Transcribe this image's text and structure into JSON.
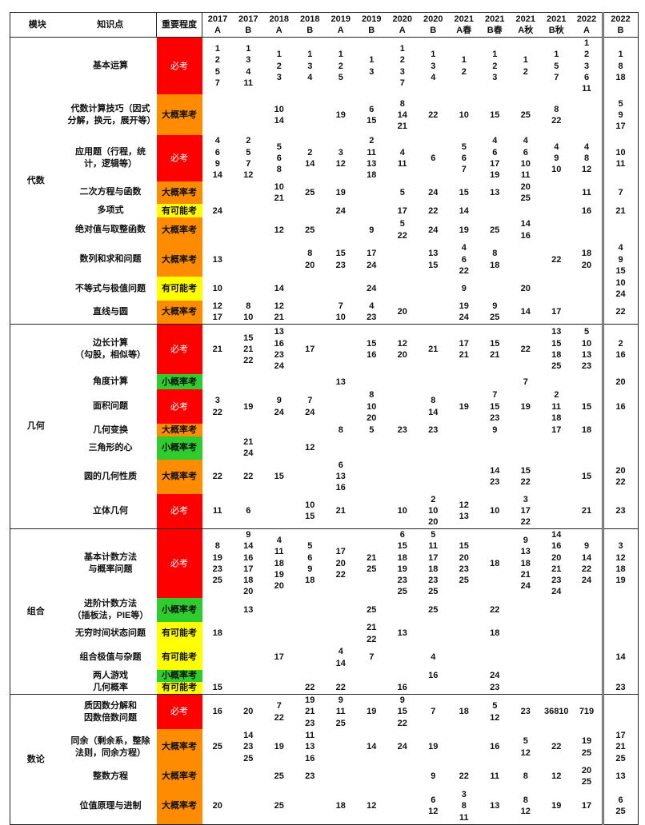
{
  "header": {
    "module": "模块",
    "topic": "知识点",
    "importance": "重要程度",
    "years": [
      {
        "year": "2017",
        "paper": "A"
      },
      {
        "year": "2017",
        "paper": "B"
      },
      {
        "year": "2018",
        "paper": "A"
      },
      {
        "year": "2018",
        "paper": "B"
      },
      {
        "year": "2019",
        "paper": "A"
      },
      {
        "year": "2019",
        "paper": "B"
      },
      {
        "year": "2020",
        "paper": "A"
      },
      {
        "year": "2020",
        "paper": "B"
      },
      {
        "year": "2021",
        "paper": "A春"
      },
      {
        "year": "2021",
        "paper": "B春"
      },
      {
        "year": "2021",
        "paper": "A秋"
      },
      {
        "year": "2021",
        "paper": "B秋"
      },
      {
        "year": "2022",
        "paper": "A"
      },
      {
        "year": "2022",
        "paper": "B"
      }
    ]
  },
  "importance_colors": {
    "必考": {
      "bg": "#ff0000",
      "fg": "#ffffff"
    },
    "大概率考": {
      "bg": "#ff8c00",
      "fg": "#111111"
    },
    "有可能考": {
      "bg": "#ffff00",
      "fg": "#111111"
    },
    "小概率考": {
      "bg": "#2ecc2e",
      "fg": "#111111"
    }
  },
  "modules": [
    {
      "name": "代数",
      "rows": [
        {
          "topic": "基本运算",
          "importance": "必考",
          "cells": [
            "1\n2\n5\n7",
            "1\n3\n4\n11",
            "1\n2\n3",
            "1\n3\n4",
            "1\n2\n5",
            "1\n3",
            "1\n2\n3\n7",
            "1\n3\n4",
            "1\n2",
            "1\n2\n3",
            "1\n2",
            "1\n5\n7",
            "1\n2\n3\n6\n11",
            "1\n8\n18"
          ]
        },
        {
          "topic": "代数计算技巧（因式分解，换元，展开等）",
          "importance": "大概率考",
          "cells": [
            "",
            "",
            "10\n14",
            "",
            "19",
            "6\n15",
            "8\n14\n21",
            "22",
            "10",
            "15",
            "25",
            "8\n22",
            "",
            "5\n9\n17"
          ]
        },
        {
          "topic": "应用题（行程，统计，逻辑等）",
          "importance": "必考",
          "cells": [
            "4\n6\n9\n14",
            "2\n5\n7\n12",
            "5\n6\n8",
            "2\n14",
            "3\n12",
            "2\n11\n13\n18",
            "4\n11",
            "6",
            "5\n6\n7",
            "4\n6\n17\n19",
            "4\n6\n10\n11",
            "4\n9\n10",
            "4\n8\n12",
            "10\n11"
          ]
        },
        {
          "topic": "二次方程与函数",
          "importance": "大概率考",
          "cells": [
            "",
            "",
            "10\n21",
            "25",
            "19",
            "",
            "5",
            "24",
            "15",
            "13",
            "20\n25",
            "",
            "11",
            "7"
          ]
        },
        {
          "topic": "多项式",
          "importance": "有可能考",
          "cells": [
            "24",
            "",
            "",
            "",
            "24",
            "",
            "17",
            "22",
            "14",
            "",
            "",
            "",
            "16",
            "21"
          ]
        },
        {
          "topic": "绝对值与取整函数",
          "importance": "大概率考",
          "cells": [
            "",
            "",
            "12",
            "25",
            "",
            "9",
            "5\n22",
            "24",
            "19",
            "25",
            "14\n16",
            "",
            "",
            ""
          ]
        },
        {
          "topic": "数列和求和问题",
          "importance": "大概率考",
          "cells": [
            "13",
            "",
            "",
            "8\n20",
            "15\n23",
            "17\n24",
            "",
            "13\n15",
            "4\n6\n22",
            "8\n18",
            "",
            "22",
            "18\n20",
            "4\n9\n15"
          ]
        },
        {
          "topic": "不等式与极值问题",
          "importance": "有可能考",
          "cells": [
            "10",
            "",
            "14",
            "",
            "",
            "24",
            "",
            "",
            "9",
            "",
            "20",
            "",
            "",
            "10\n24"
          ]
        },
        {
          "topic": "直线与圆",
          "importance": "大概率考",
          "cells": [
            "12\n17",
            "8\n10",
            "12\n21",
            "",
            "7\n10",
            "4\n23",
            "20",
            "",
            "19\n24",
            "9\n25",
            "14",
            "17",
            "",
            "22"
          ]
        }
      ]
    },
    {
      "name": "几何",
      "rows": [
        {
          "topic": "边长计算\n（勾股，相似等）",
          "importance": "必考",
          "cells": [
            "21",
            "15\n21\n22",
            "13\n16\n23\n24",
            "17",
            "",
            "15\n16",
            "12\n20",
            "21",
            "17\n21",
            "15\n21",
            "22",
            "13\n15\n18\n25",
            "5\n10\n13\n23",
            "2\n16"
          ]
        },
        {
          "topic": "角度计算",
          "importance": "小概率考",
          "cells": [
            "",
            "",
            "",
            "",
            "13",
            "",
            "",
            "",
            "",
            "",
            "7",
            "",
            "",
            "20"
          ]
        },
        {
          "topic": "面积问题",
          "importance": "必考",
          "cells": [
            "3\n22",
            "19",
            "9\n24",
            "7\n24",
            "",
            "8\n10\n20",
            "",
            "8\n14",
            "19",
            "7\n15\n23",
            "19",
            "2\n11\n18",
            "15",
            "16"
          ]
        },
        {
          "topic": "几何变换",
          "importance": "大概率考",
          "cells": [
            "",
            "",
            "",
            "",
            "8",
            "5",
            "23",
            "23",
            "",
            "9",
            "",
            "17",
            "18",
            ""
          ]
        },
        {
          "topic": "三角形的心",
          "importance": "小概率考",
          "cells": [
            "",
            "21\n24",
            "",
            "12",
            "",
            "",
            "",
            "",
            "",
            "",
            "",
            "",
            "",
            ""
          ]
        },
        {
          "topic": "圆的几何性质",
          "importance": "大概率考",
          "cells": [
            "22",
            "22",
            "15",
            "",
            "6\n13\n16",
            "",
            "",
            "",
            "",
            "14\n23",
            "15\n22",
            "",
            "15",
            "20\n22"
          ]
        },
        {
          "topic": "立体几何",
          "importance": "必考",
          "cells": [
            "11",
            "6",
            "",
            "10\n15",
            "21",
            "",
            "10",
            "2\n10\n20",
            "12\n13",
            "10",
            "3\n17\n22",
            "",
            "21",
            "23"
          ]
        }
      ]
    },
    {
      "name": "组合",
      "rows": [
        {
          "topic": "基本计数方法\n与概率问题",
          "importance": "必考",
          "cells": [
            "8\n19\n23\n25",
            "9\n14\n16\n17\n18\n20",
            "4\n11\n18\n19\n20",
            "5\n6\n9\n18",
            "17\n20\n22",
            "21\n25",
            "6\n15\n18\n19\n23\n25",
            "5\n11\n17\n18\n23\n25",
            "15\n20\n23\n25",
            "18",
            "9\n13\n18\n21\n24",
            "14\n16\n20\n21\n23\n24",
            "9\n14\n22\n24",
            "3\n12\n18\n19"
          ]
        },
        {
          "topic": "进阶计数方法\n（插板法，PIE等）",
          "importance": "小概率考",
          "cells": [
            "",
            "13",
            "",
            "",
            "",
            "25",
            "",
            "25",
            "",
            "22",
            "",
            "",
            "",
            ""
          ]
        },
        {
          "topic": "无穷时间状态问题",
          "importance": "有可能考",
          "cells": [
            "18",
            "",
            "",
            "",
            "",
            "21\n22",
            "13",
            "",
            "",
            "18",
            "",
            "",
            "",
            ""
          ]
        },
        {
          "topic": "组合极值与杂题",
          "importance": "有可能考",
          "cells": [
            "",
            "",
            "17",
            "",
            "4\n14",
            "7",
            "",
            "4",
            "",
            "",
            "",
            "",
            "",
            "14"
          ]
        },
        {
          "topic": "两人游戏",
          "importance": "小概率考",
          "cells": [
            "",
            "",
            "",
            "",
            "",
            "",
            "",
            "16",
            "",
            "24",
            "",
            "",
            "",
            ""
          ]
        },
        {
          "topic": "几何概率",
          "importance": "有可能考",
          "cells": [
            "15",
            "",
            "",
            "22",
            "22",
            "",
            "16",
            "",
            "",
            "23",
            "",
            "",
            "",
            "23"
          ]
        }
      ]
    },
    {
      "name": "数论",
      "rows": [
        {
          "topic": "质因数分解和\n因数倍数问题",
          "importance": "必考",
          "cells": [
            "16",
            "20",
            "7\n22",
            "19\n21\n23",
            "9\n11\n25",
            "19",
            "9\n15\n22",
            "7",
            "18",
            "5\n12",
            "23",
            "36810",
            "719",
            ""
          ]
        },
        {
          "topic": "同余（剩余系，整除法则，同余方程）",
          "importance": "大概率考",
          "cells": [
            "25",
            "14\n23\n25",
            "19",
            "11\n13\n16",
            "",
            "14",
            "24",
            "19",
            "",
            "16",
            "5\n12",
            "22",
            "19\n25",
            "17\n21\n25"
          ]
        },
        {
          "topic": "整数方程",
          "importance": "大概率考",
          "cells": [
            "",
            "",
            "25",
            "23",
            "",
            "",
            "",
            "9",
            "22",
            "11",
            "8",
            "12",
            "20\n25",
            "13"
          ]
        },
        {
          "topic": "位值原理与进制",
          "importance": "大概率考",
          "cells": [
            "20",
            "",
            "25",
            "",
            "18",
            "12",
            "",
            "6\n12",
            "3\n8\n11",
            "13",
            "8\n12",
            "19",
            "17",
            "6\n25"
          ]
        }
      ]
    }
  ]
}
